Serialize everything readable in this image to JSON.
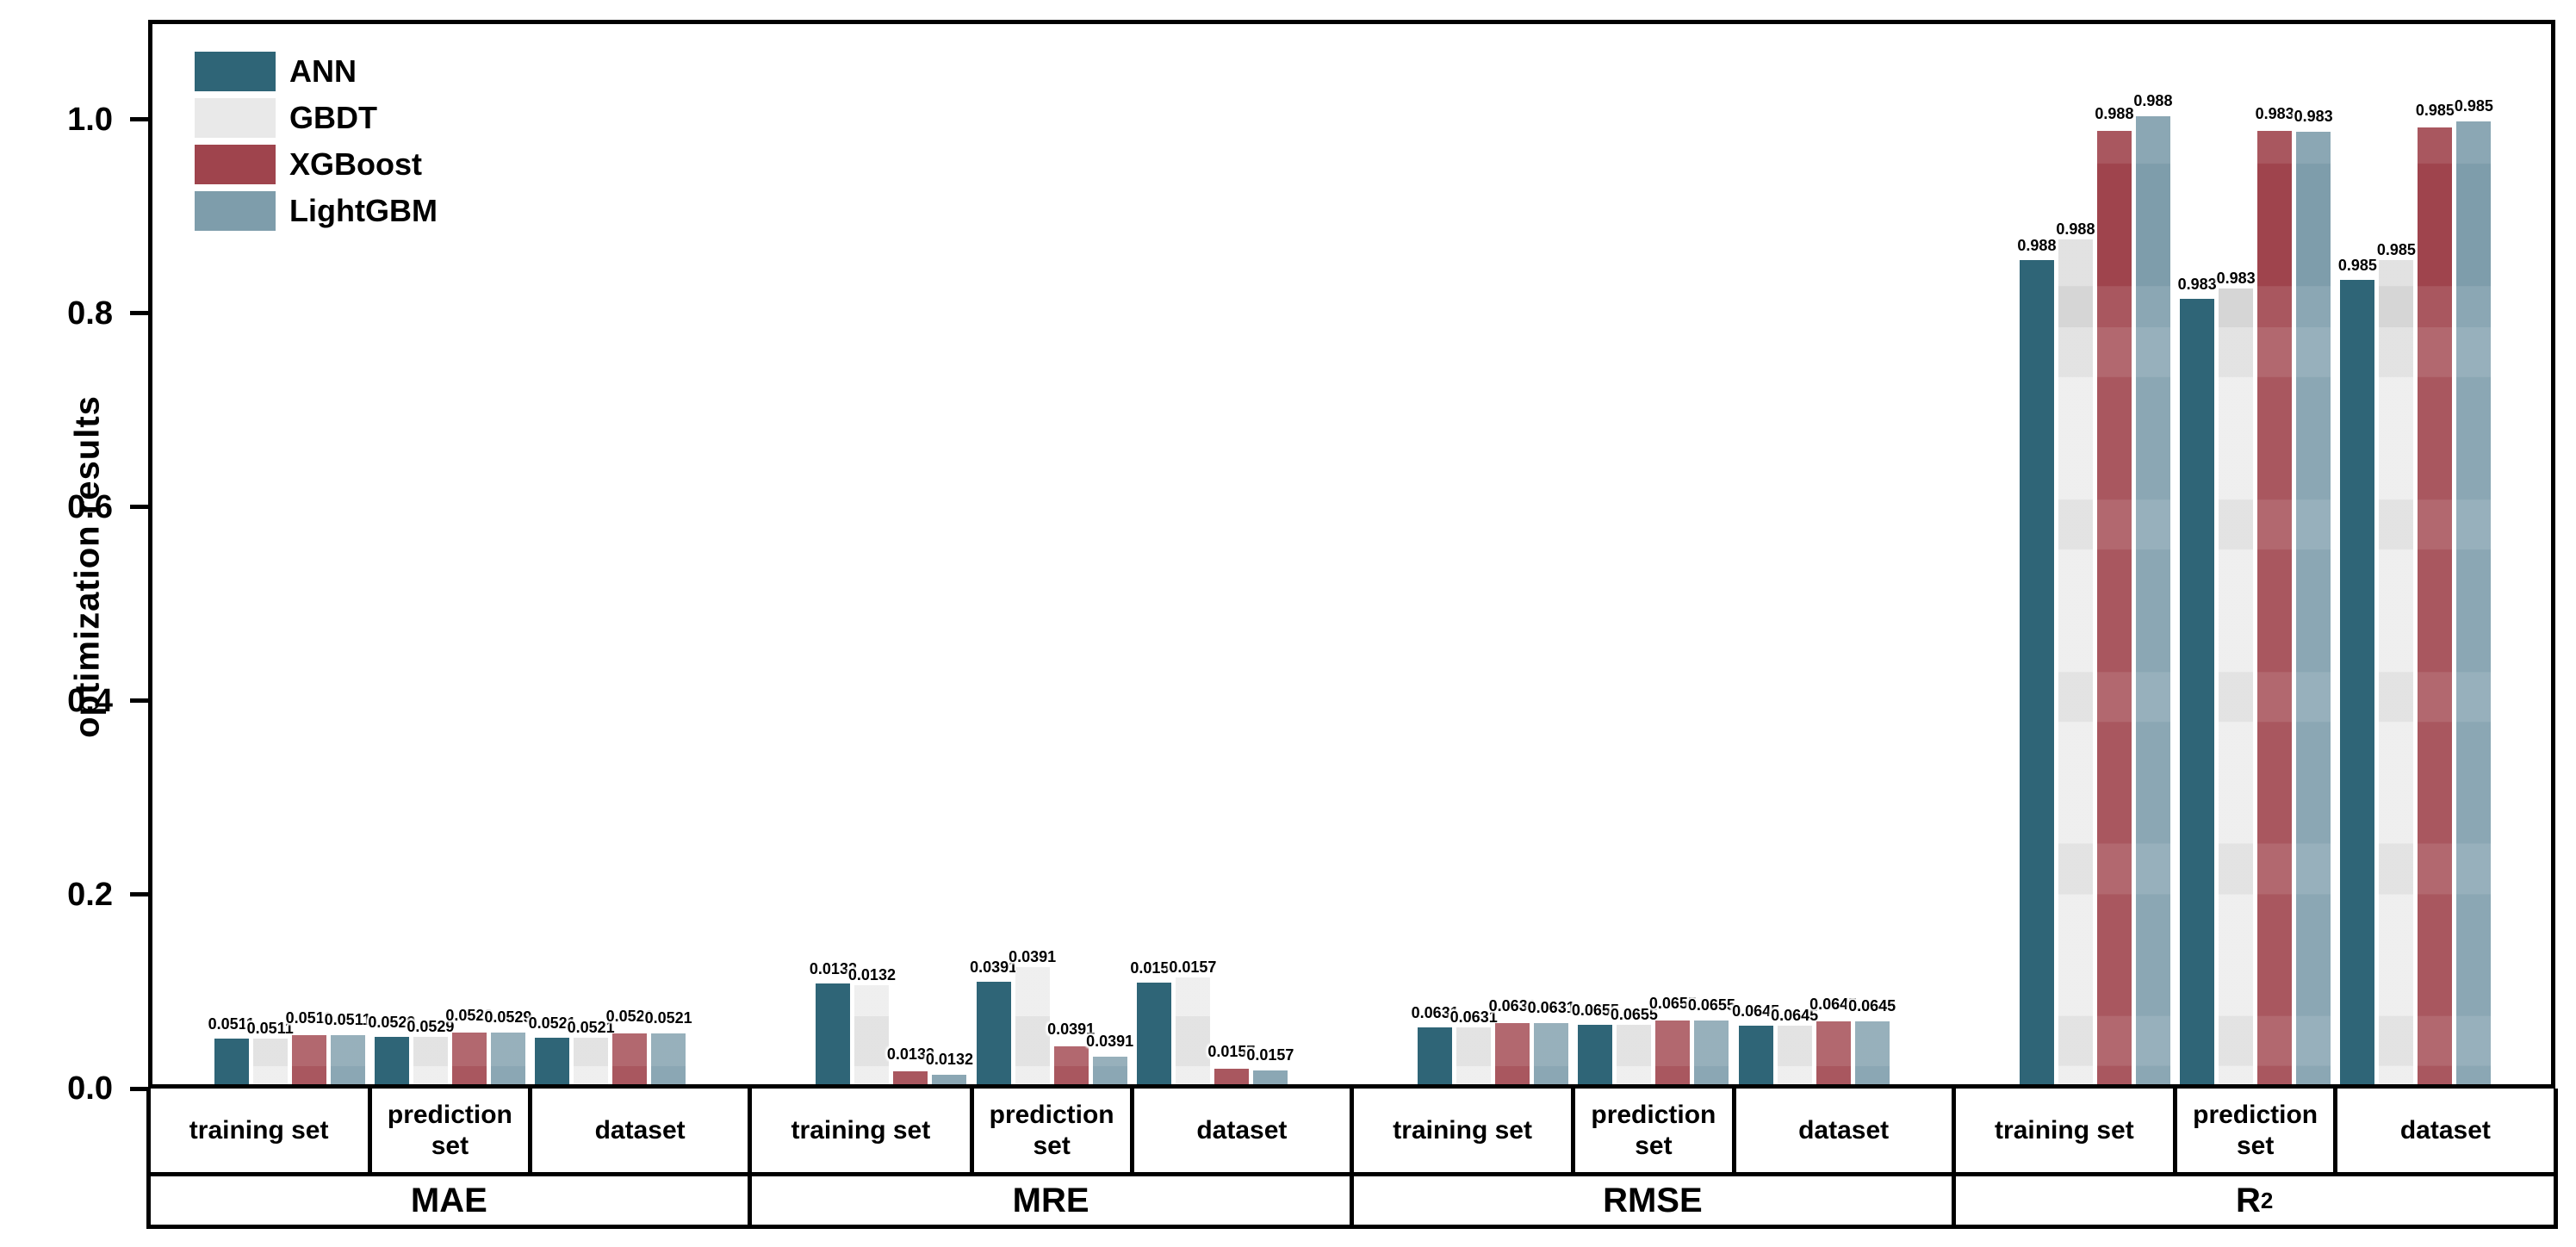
{
  "legend": {
    "entries": [
      {
        "label": "ANN",
        "color": "#2F6577"
      },
      {
        "label": "GBDT",
        "color": "#E9E9E9"
      },
      {
        "label": "XGBoost",
        "color": "#9F444D"
      },
      {
        "label": "LightGBM",
        "color": "#7E9DAB"
      }
    ]
  },
  "chart_data": {
    "type": "bar",
    "title": "",
    "xlabel": "",
    "ylabel": "optimization results",
    "ylim": [
      0,
      1.1
    ],
    "yticks": [
      "0.0",
      "0.2",
      "0.4",
      "0.6",
      "0.8",
      "1.0"
    ],
    "grid": false,
    "legend_position": "upper-left",
    "series": [
      "ANN",
      "GBDT",
      "XGBoost",
      "LightGBM"
    ],
    "series_colors": [
      "#2F6577",
      "#E9E9E9",
      "#9F444D",
      "#7E9DAB"
    ],
    "sections": [
      {
        "metric": "MAE",
        "metric_sup": "",
        "groups": [
          {
            "category": "training set",
            "value_label": "0.0511",
            "values": [
              0.0511,
              0.0511,
              0.0511,
              0.0511
            ],
            "drawn_heights": [
              0.047,
              0.047,
              0.051,
              0.051
            ]
          },
          {
            "category": "prediction set",
            "value_label": "0.0529",
            "values": [
              0.0529,
              0.0529,
              0.0529,
              0.0529
            ],
            "drawn_heights": [
              0.049,
              0.049,
              0.053,
              0.053
            ]
          },
          {
            "category": "dataset",
            "value_label": "0.0521",
            "values": [
              0.0521,
              0.0521,
              0.0521,
              0.0521
            ],
            "drawn_heights": [
              0.048,
              0.048,
              0.052,
              0.052
            ]
          }
        ]
      },
      {
        "metric": "MRE",
        "metric_sup": "",
        "groups": [
          {
            "category": "training set",
            "value_label": "0.0132",
            "values": [
              0.0132,
              0.0132,
              0.0132,
              0.0132
            ],
            "drawn_heights": [
              0.104,
              0.102,
              0.013,
              0.01
            ]
          },
          {
            "category": "prediction set",
            "value_label": "0.0391",
            "values": [
              0.0391,
              0.0391,
              0.0391,
              0.0391
            ],
            "drawn_heights": [
              0.106,
              0.121,
              0.039,
              0.028
            ]
          },
          {
            "category": "dataset",
            "value_label": "0.0157",
            "values": [
              0.0157,
              0.0157,
              0.0157,
              0.0157
            ],
            "drawn_heights": [
              0.105,
              0.11,
              0.016,
              0.014
            ]
          }
        ]
      },
      {
        "metric": "RMSE",
        "metric_sup": "",
        "groups": [
          {
            "category": "training set",
            "value_label": "0.0631",
            "values": [
              0.0631,
              0.0631,
              0.0631,
              0.0631
            ],
            "drawn_heights": [
              0.059,
              0.059,
              0.063,
              0.063
            ]
          },
          {
            "category": "prediction set",
            "value_label": "0.0655",
            "values": [
              0.0655,
              0.0655,
              0.0655,
              0.0655
            ],
            "drawn_heights": [
              0.061,
              0.061,
              0.0655,
              0.0655
            ]
          },
          {
            "category": "dataset",
            "value_label": "0.0645",
            "values": [
              0.0645,
              0.0645,
              0.0645,
              0.0645
            ],
            "drawn_heights": [
              0.06,
              0.06,
              0.0645,
              0.0645
            ]
          }
        ]
      },
      {
        "metric": "R",
        "metric_sup": "2",
        "groups": [
          {
            "category": "training set",
            "value_label": "0.988",
            "values": [
              0.988,
              0.988,
              0.988,
              0.988
            ],
            "drawn_heights": [
              0.85,
              0.872,
              0.984,
              0.999
            ]
          },
          {
            "category": "prediction set",
            "value_label": "0.983",
            "values": [
              0.983,
              0.983,
              0.983,
              0.983
            ],
            "drawn_heights": [
              0.81,
              0.821,
              0.984,
              0.983
            ]
          },
          {
            "category": "dataset",
            "value_label": "0.985",
            "values": [
              0.985,
              0.985,
              0.985,
              0.985
            ],
            "drawn_heights": [
              0.83,
              0.85,
              0.987,
              0.993
            ]
          }
        ]
      }
    ]
  }
}
